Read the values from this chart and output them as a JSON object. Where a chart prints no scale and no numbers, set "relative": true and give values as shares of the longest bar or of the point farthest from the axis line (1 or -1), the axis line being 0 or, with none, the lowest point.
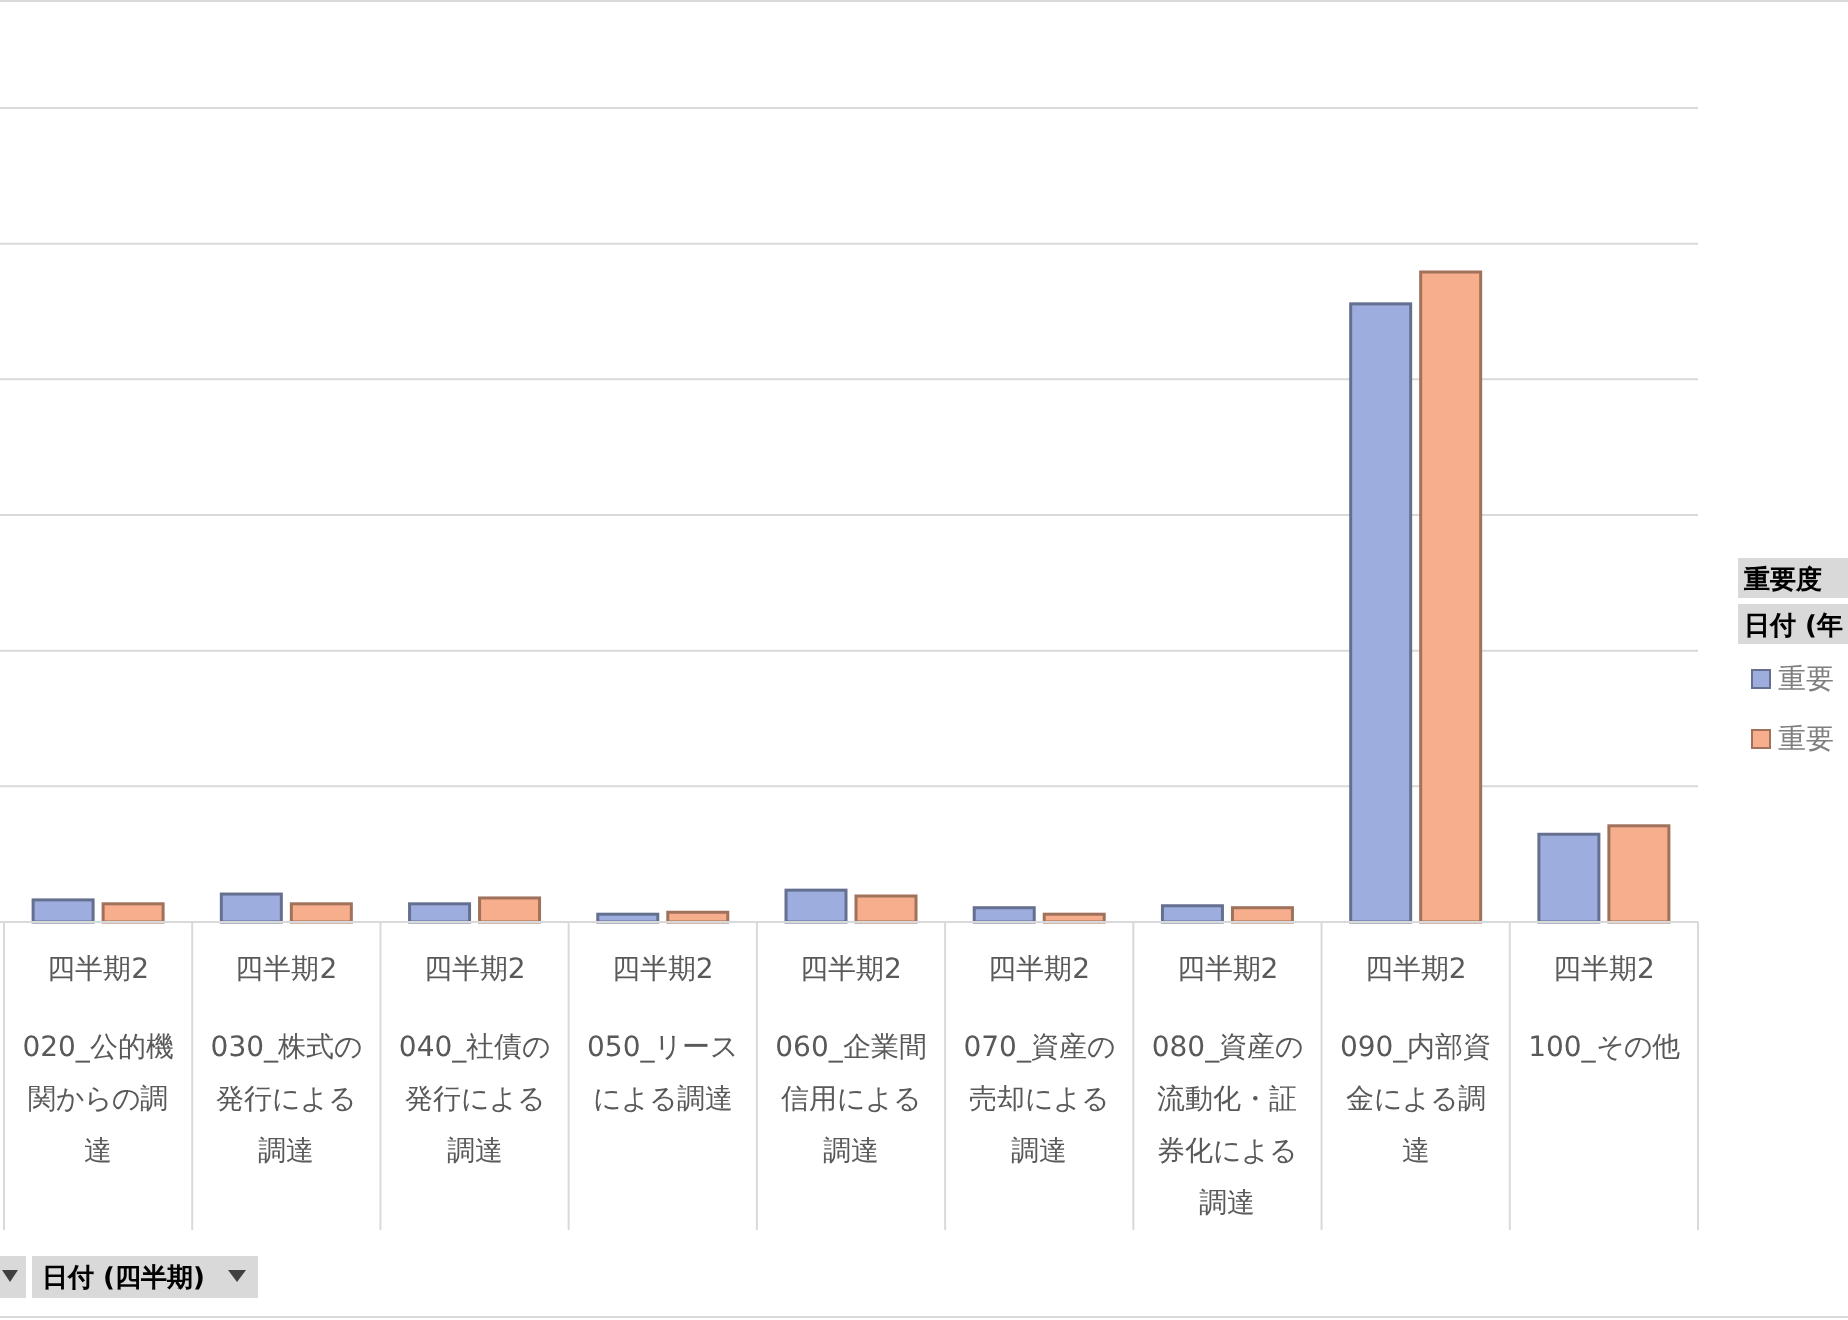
{
  "chart_data": {
    "type": "bar",
    "relative": true,
    "grid": "y",
    "legend": "right",
    "legend_title": "重要度",
    "categories": [
      "020_公的機関からの調達",
      "030_株式の発行による調達",
      "040_社債の発行による調達",
      "050_リースによる調達",
      "060_企業間信用による調達",
      "070_資産の売却による調達",
      "080_資産の流動化・証券化による調達",
      "090_内部資金による調達",
      "100_その他"
    ],
    "series": [
      {
        "name": "重要",
        "color": "#9cadde",
        "values": [
          0.034,
          0.043,
          0.028,
          0.012,
          0.049,
          0.022,
          0.025,
          0.951,
          0.135
        ]
      },
      {
        "name": "重要",
        "color": "#f6ae8c",
        "values": [
          0.028,
          0.028,
          0.037,
          0.015,
          0.04,
          0.012,
          0.022,
          1,
          0.148
        ]
      }
    ],
    "annotations": [
      "四半期2",
      "四半期2",
      "四半期2",
      "四半期2",
      "四半期2",
      "四半期2",
      "四半期2",
      "四半期2",
      "四半期2",
      "日付 (年",
      "日付 (四半期)"
    ]
  }
}
